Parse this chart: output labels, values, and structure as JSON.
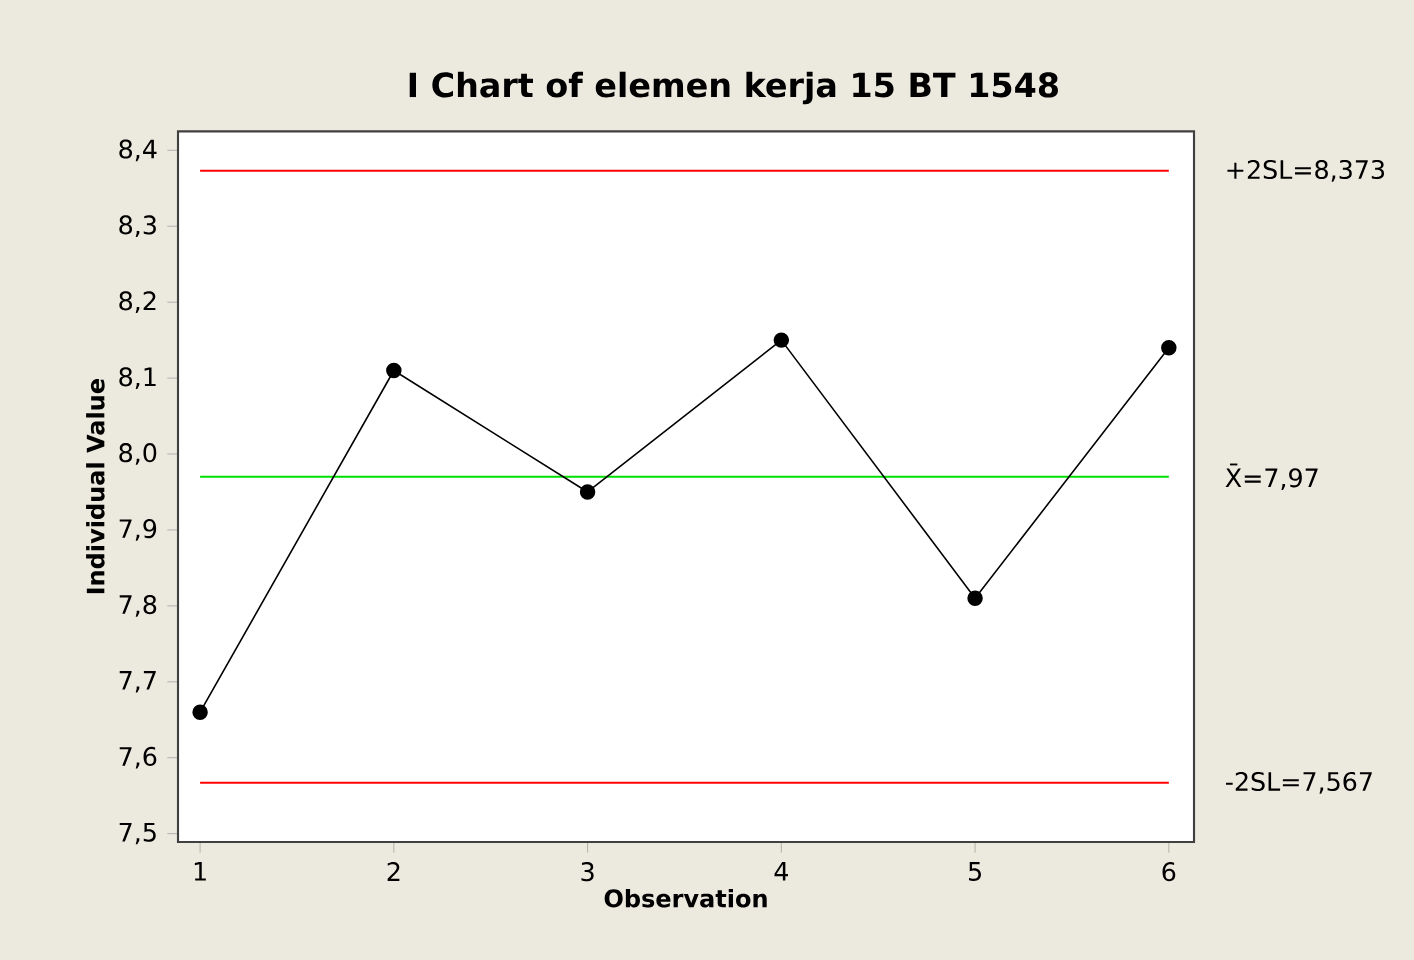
{
  "chart_data": {
    "type": "line",
    "title": "I Chart of elemen kerja 15 BT 1548",
    "xlabel": "Observation",
    "ylabel": "Individual Value",
    "x": [
      1,
      2,
      3,
      4,
      5,
      6
    ],
    "series": [
      {
        "color": "#000000",
        "values": [
          7.66,
          8.11,
          7.95,
          8.15,
          7.81,
          8.14
        ]
      }
    ],
    "marker": "circle",
    "line_style": "solid",
    "grid": false,
    "xlim": [
      0.886,
      6.13
    ],
    "xticks": [
      1,
      2,
      3,
      4,
      5,
      6
    ],
    "ylim": [
      7.489,
      8.425
    ],
    "yticks": [
      {
        "value": 7.5,
        "label": "7,5"
      },
      {
        "value": 7.6,
        "label": "7,6"
      },
      {
        "value": 7.7,
        "label": "7,7"
      },
      {
        "value": 7.8,
        "label": "7,8"
      },
      {
        "value": 7.9,
        "label": "7,9"
      },
      {
        "value": 8.0,
        "label": "8,0"
      },
      {
        "value": 8.1,
        "label": "8,1"
      },
      {
        "value": 8.2,
        "label": "8,2"
      },
      {
        "value": 8.3,
        "label": "8,3"
      },
      {
        "value": 8.4,
        "label": "8,4"
      }
    ],
    "ref_lines": [
      {
        "axis": "y",
        "value": 8.373,
        "label": "+2SL=8,373",
        "color": "#ff0000"
      },
      {
        "axis": "y",
        "value": 7.97,
        "label": "X̄=7,97",
        "color": "#00e000"
      },
      {
        "axis": "y",
        "value": 7.567,
        "label": "-2SL=7,567",
        "color": "#ff0000"
      }
    ]
  }
}
